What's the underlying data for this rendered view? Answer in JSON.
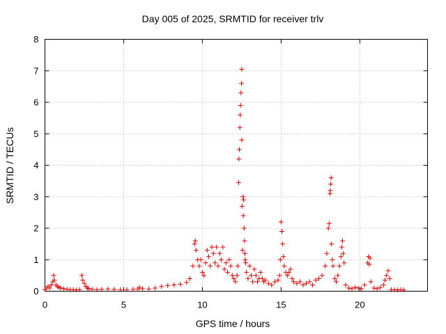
{
  "chart_data": {
    "type": "scatter",
    "title": "Day 005 of 2025, SRMTID for receiver trlv",
    "xlabel": "GPS time / hours",
    "ylabel": "SRMTID / TECUs",
    "xlim": [
      0,
      24.3
    ],
    "ylim": [
      0,
      8
    ],
    "xticks": [
      0,
      5,
      10,
      15,
      20
    ],
    "yticks": [
      0,
      1,
      2,
      3,
      4,
      5,
      6,
      7,
      8
    ],
    "xtick_labels": [
      "0",
      "5",
      "10",
      "15",
      "20"
    ],
    "ytick_labels": [
      "0",
      "1",
      "2",
      "3",
      "4",
      "5",
      "6",
      "7",
      "8"
    ],
    "grid": true,
    "marker": "+",
    "color": "#e00000",
    "series": [
      {
        "name": "SRMTID",
        "x": [
          0.0,
          0.1,
          0.2,
          0.3,
          0.4,
          0.5,
          0.55,
          0.6,
          0.7,
          0.8,
          0.9,
          1.0,
          1.2,
          1.4,
          1.6,
          1.8,
          2.0,
          2.2,
          2.35,
          2.4,
          2.5,
          2.6,
          2.7,
          2.8,
          3.0,
          3.3,
          3.6,
          4.0,
          4.4,
          4.8,
          5.2,
          5.6,
          5.9,
          6.0,
          6.2,
          6.6,
          7.0,
          7.4,
          7.8,
          8.2,
          8.6,
          9.0,
          9.2,
          9.4,
          9.5,
          9.55,
          9.6,
          9.7,
          9.8,
          9.9,
          10.0,
          10.1,
          10.2,
          10.3,
          10.4,
          10.5,
          10.6,
          10.7,
          10.8,
          10.9,
          11.0,
          11.1,
          11.2,
          11.3,
          11.4,
          11.5,
          11.6,
          11.7,
          11.8,
          11.9,
          12.0,
          12.1,
          12.2,
          12.25,
          12.3,
          12.32,
          12.35,
          12.38,
          12.4,
          12.42,
          12.45,
          12.48,
          12.5,
          12.5,
          12.52,
          12.55,
          12.58,
          12.6,
          12.62,
          12.65,
          12.68,
          12.7,
          12.72,
          12.75,
          12.8,
          12.9,
          13.0,
          13.1,
          13.2,
          13.3,
          13.4,
          13.5,
          13.6,
          13.7,
          13.8,
          13.9,
          14.0,
          14.2,
          14.4,
          14.6,
          14.8,
          14.9,
          14.95,
          15.0,
          15.05,
          15.1,
          15.15,
          15.2,
          15.3,
          15.4,
          15.5,
          15.6,
          15.7,
          15.8,
          16.0,
          16.2,
          16.4,
          16.6,
          16.8,
          17.0,
          17.2,
          17.4,
          17.6,
          17.8,
          17.9,
          18.0,
          18.05,
          18.1,
          18.12,
          18.15,
          18.18,
          18.2,
          18.25,
          18.3,
          18.4,
          18.5,
          18.6,
          18.7,
          18.8,
          18.85,
          18.9,
          18.95,
          19.0,
          19.1,
          19.3,
          19.5,
          19.7,
          19.9,
          20.1,
          20.3,
          20.5,
          20.55,
          20.6,
          20.65,
          20.7,
          20.9,
          21.1,
          21.3,
          21.5,
          21.6,
          21.7,
          21.8,
          21.9,
          22.0,
          22.2,
          22.4,
          22.6,
          22.8
        ],
        "y": [
          0.05,
          0.1,
          0.15,
          0.1,
          0.2,
          0.3,
          0.5,
          0.35,
          0.2,
          0.15,
          0.12,
          0.1,
          0.08,
          0.06,
          0.05,
          0.05,
          0.04,
          0.05,
          0.5,
          0.35,
          0.25,
          0.15,
          0.1,
          0.08,
          0.06,
          0.05,
          0.06,
          0.07,
          0.06,
          0.05,
          0.05,
          0.06,
          0.07,
          0.12,
          0.08,
          0.07,
          0.1,
          0.15,
          0.18,
          0.2,
          0.22,
          0.28,
          0.4,
          0.8,
          1.5,
          1.6,
          1.3,
          1.0,
          0.8,
          1.0,
          0.6,
          0.5,
          0.9,
          1.3,
          1.1,
          0.8,
          1.4,
          1.2,
          0.9,
          1.4,
          0.8,
          1.2,
          1.0,
          1.4,
          0.7,
          0.9,
          0.6,
          1.0,
          0.8,
          0.5,
          0.4,
          0.3,
          0.5,
          0.8,
          3.45,
          4.2,
          4.5,
          5.2,
          5.6,
          5.9,
          6.3,
          6.6,
          7.05,
          4.8,
          2.7,
          1.3,
          3.0,
          2.4,
          2.9,
          2.0,
          1.6,
          1.2,
          1.0,
          0.9,
          0.6,
          0.4,
          0.8,
          0.5,
          0.3,
          0.7,
          0.5,
          0.3,
          0.4,
          0.6,
          0.4,
          0.3,
          0.35,
          0.25,
          0.2,
          0.3,
          0.35,
          0.5,
          1.0,
          2.2,
          1.9,
          1.5,
          1.1,
          0.8,
          0.6,
          0.5,
          0.6,
          0.7,
          0.4,
          0.3,
          0.25,
          0.3,
          0.2,
          0.25,
          0.3,
          0.2,
          0.35,
          0.4,
          0.5,
          0.8,
          1.2,
          2.0,
          2.15,
          3.1,
          3.2,
          3.4,
          3.6,
          1.5,
          1.0,
          0.8,
          0.4,
          0.3,
          0.5,
          0.8,
          1.1,
          1.4,
          1.6,
          1.2,
          0.9,
          0.2,
          0.1,
          0.08,
          0.12,
          0.1,
          0.08,
          0.2,
          0.9,
          1.1,
          0.85,
          1.05,
          0.3,
          0.1,
          0.08,
          0.12,
          0.2,
          0.35,
          0.5,
          0.65,
          0.4,
          0.05,
          0.05,
          0.04,
          0.05,
          0.04
        ]
      }
    ]
  }
}
